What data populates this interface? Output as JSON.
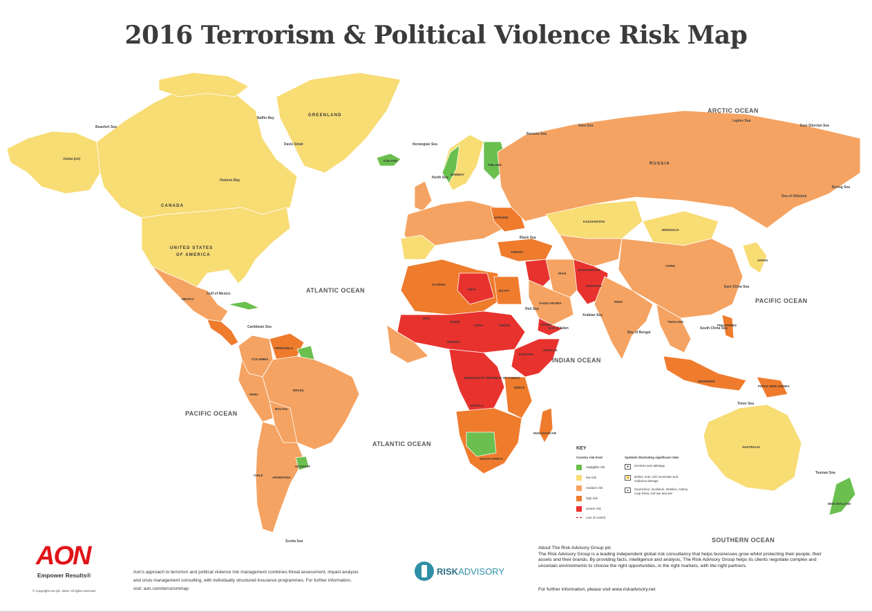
{
  "title": "2016 Terrorism & Political Violence Risk Map",
  "colors": {
    "negligible": "#6bbf4e",
    "low": "#f8dc74",
    "medium": "#f5a362",
    "high": "#ef7b2d",
    "severe": "#e8322e",
    "ocean": "#ffffff",
    "aon_red": "#e1141a",
    "risk_advisory_blue": "#2f8fa6"
  },
  "oceans": {
    "arctic": "ARCTIC OCEAN",
    "atlantic_north": "ATLANTIC OCEAN",
    "atlantic_south": "ATLANTIC OCEAN",
    "pacific_east": "PACIFIC OCEAN",
    "pacific_west": "PACIFIC OCEAN",
    "indian": "INDIAN OCEAN",
    "southern": "SOUTHERN OCEAN"
  },
  "seas": {
    "beaufort": "Beaufort Sea",
    "baffin": "Baffin Bay",
    "davis": "Davis Strait",
    "hudson": "Hudson Bay",
    "norwegian": "Norwegian Sea",
    "barents": "Barents Sea",
    "kara": "Kara Sea",
    "laptev": "Laptev Sea",
    "east_siberian": "East Siberian Sea",
    "bering": "Bering Sea",
    "okhotsk": "Sea of Okhotsk",
    "north": "North Sea",
    "black": "Black Sea",
    "gulf_mexico": "Gulf of Mexico",
    "caribbean": "Caribbean Sea",
    "red": "Red Sea",
    "arabian": "Arabian Sea",
    "bengal": "Bay of Bengal",
    "south_china": "South China Sea",
    "east_china": "East China Sea",
    "timor": "Timor Sea",
    "tasman": "Tasman Sea",
    "scotia": "Scotia Sea",
    "gulf_aden": "Gulf of Aden"
  },
  "countries": {
    "greenland": "GREENLAND",
    "alaska": "Alaska (US)",
    "canada": "CANADA",
    "usa_1": "UNITED STATES",
    "usa_2": "OF AMERICA",
    "mexico": "MEXICO",
    "brazil": "BRAZIL",
    "argentina": "ARGENTINA",
    "russia": "RUSSIA",
    "kazakhstan": "KAZAKHSTAN",
    "mongolia": "MONGOLIA",
    "china": "CHINA",
    "india": "INDIA",
    "australia": "AUSTRALIA",
    "libya": "LIBYA",
    "egypt": "EGYPT",
    "algeria": "ALGERIA",
    "mali": "MALI",
    "niger": "NIGER",
    "chad": "CHAD",
    "sudan": "SUDAN",
    "nigeria": "NIGERIA",
    "drc": "DEMOCRATIC REPUBLIC OF CONGO",
    "angola": "ANGOLA",
    "south_africa": "SOUTH AFRICA",
    "saudi": "SAUDI ARABIA",
    "iran": "IRAN",
    "afghanistan": "AFGHANISTAN",
    "pakistan": "PAKISTAN",
    "turkey": "TURKEY",
    "ukraine": "UKRAINE",
    "japan": "JAPAN",
    "indonesia": "INDONESIA",
    "papua": "PAPUA NEW GUINEA",
    "madagascar": "MADAGASCAR",
    "colombia": "COLOMBIA",
    "venezuela": "VENEZUELA",
    "peru": "PERU",
    "bolivia": "BOLIVIA",
    "chile": "CHILE",
    "uruguay": "URUGUAY",
    "iceland": "ICELAND",
    "finland": "FINLAND",
    "norway": "NORWAY",
    "new_zealand": "NEW ZEALAND",
    "yemen": "YEMEN",
    "somalia": "SOMALIA",
    "ethiopia": "ETHIOPIA",
    "kenya": "KENYA",
    "thailand": "THAILAND",
    "philippines": "PHILIPPINES"
  },
  "key": {
    "title": "KEY",
    "country_level": "Country risk level",
    "symbols_heading": "Symbols illustrating significant risks",
    "levels": [
      {
        "label": "negligible risk",
        "color": "#6bbf4e"
      },
      {
        "label": "low risk",
        "color": "#f8dc74"
      },
      {
        "label": "medium risk",
        "color": "#f5a362"
      },
      {
        "label": "high risk",
        "color": "#ef7b2d"
      },
      {
        "label": "severe risk",
        "color": "#e8322e"
      }
    ],
    "line_of_control": "Line of control",
    "symbols": [
      {
        "icon": "terrorism-icon",
        "label": "terrorism and sabotage"
      },
      {
        "icon": "strikes-icon",
        "label": "strikes, riots, civil commotion and malicious damage"
      },
      {
        "icon": "war-icon",
        "label": "insurrection, revolution, rebellion, mutiny, coup d'etat, civil war and war"
      }
    ]
  },
  "footer": {
    "aon_logo": "AON",
    "aon_tagline": "Empower Results®",
    "copyright": "© Copyright Aon plc. 2016. All rights reserved.",
    "aon_text": "Aon's approach to terrorism and political violence risk management combines threat assessment, impact analysis and crisis management consulting, with individually structured insurance programmes. For further information, visit: aon.com/terrorismmap",
    "ra_brand_a": "RISK",
    "ra_brand_b": "ADVISORY",
    "about_heading": "About The Risk Advisory Group plc",
    "about_text": "The Risk Advisory Group is a leading independent global risk consultancy that helps businesses grow whilst protecting their people, their assets and their brands.  By providing facts, intelligence and analysis, The Risk Advisory Group helps its clients negotiate complex and uncertain environments to choose the right opportunities, in the right markets, with the right partners.",
    "about_link": "For further information, please visit www.riskadvisory.net"
  }
}
